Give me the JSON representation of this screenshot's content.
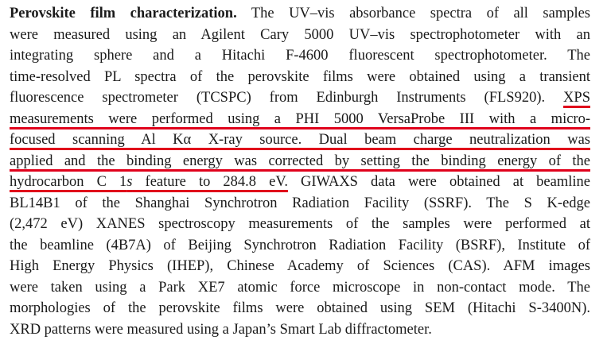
{
  "paragraph": {
    "lines": [
      [
        "Perovskite film characterization.",
        " The UV–vis absorbance spectra of all samples"
      ],
      [
        "were measured using an Agilent Cary 5000 UV–vis spectrophotometer with an"
      ],
      [
        "integrating sphere and a Hitachi F-4600 fluorescent spectrophotometer. The"
      ],
      [
        "time-resolved PL spectra of the perovskite films were obtained using a transient"
      ],
      [
        "fluorescence spectrometer (TCSPC) from Edinburgh Instruments (FLS920). ",
        "XPS"
      ],
      [
        "measurements were performed using a PHI 5000 VersaProbe III with a micro-"
      ],
      [
        "focused scanning Al Kα X-ray source. Dual beam charge neutralization was"
      ],
      [
        "applied and the binding energy was corrected by setting the binding energy of the"
      ],
      [
        "hydrocarbon C 1",
        "s",
        " feature to 284.8 eV.",
        " GIWAXS data were obtained at beamline"
      ],
      [
        "BL14B1 of the Shanghai Synchrotron Radiation Facility (SSRF). The S K-edge"
      ],
      [
        "(2,472 eV) XANES spectroscopy measurements of the samples were performed at"
      ],
      [
        "the beamline (4B7A) of Beijing Synchrotron Radiation Facility (BSRF), Institute of"
      ],
      [
        "High Energy Physics (IHEP), Chinese Academy of Sciences (CAS). AFM images"
      ],
      [
        "were taken using a Park XE7 atomic force microscope in non-contact mode. The"
      ],
      [
        "morphologies of the perovskite films were obtained using SEM (Hitachi S-3400N)."
      ],
      [
        "XRD patterns were measured using a Japan’s Smart Lab diffractometer."
      ]
    ]
  }
}
